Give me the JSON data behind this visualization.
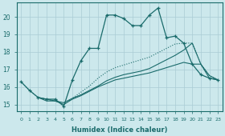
{
  "xlabel": "Humidex (Indice chaleur)",
  "background_color": "#cce8ec",
  "grid_color": "#aaccd4",
  "line_color": "#1a6b6b",
  "xlim": [
    -0.5,
    23.5
  ],
  "ylim": [
    14.6,
    20.8
  ],
  "xticks": [
    0,
    1,
    2,
    3,
    4,
    5,
    6,
    7,
    8,
    9,
    10,
    11,
    12,
    13,
    14,
    15,
    16,
    17,
    18,
    19,
    20,
    21,
    22,
    23
  ],
  "yticks": [
    15,
    16,
    17,
    18,
    19,
    20
  ],
  "line_main": {
    "x": [
      0,
      1,
      2,
      3,
      4,
      5,
      6,
      7,
      8,
      9,
      10,
      11,
      12,
      13,
      14,
      15,
      16,
      17,
      18,
      19,
      20,
      21,
      22,
      23
    ],
    "y": [
      16.3,
      15.8,
      15.4,
      15.3,
      15.3,
      14.9,
      16.4,
      17.5,
      18.2,
      18.2,
      20.1,
      20.1,
      19.9,
      19.5,
      19.5,
      20.1,
      20.5,
      18.8,
      18.9,
      18.5,
      17.3,
      16.7,
      16.5,
      16.4
    ]
  },
  "line_flat1": {
    "x": [
      2,
      3,
      4,
      5,
      6,
      7,
      8,
      9,
      10,
      11,
      12,
      13,
      14,
      15,
      16,
      17,
      18,
      19,
      20,
      21,
      22,
      23
    ],
    "y": [
      15.4,
      15.3,
      15.2,
      15.0,
      15.3,
      15.5,
      15.75,
      16.0,
      16.2,
      16.4,
      16.5,
      16.6,
      16.7,
      16.8,
      16.95,
      17.1,
      17.25,
      17.4,
      17.3,
      17.3,
      16.5,
      16.4
    ]
  },
  "line_flat2": {
    "x": [
      2,
      3,
      4,
      5,
      6,
      7,
      8,
      9,
      10,
      11,
      12,
      13,
      14,
      15,
      16,
      17,
      18,
      19,
      20,
      21,
      22,
      23
    ],
    "y": [
      15.4,
      15.2,
      15.2,
      15.1,
      15.35,
      15.55,
      15.8,
      16.05,
      16.35,
      16.55,
      16.7,
      16.8,
      16.9,
      17.05,
      17.3,
      17.55,
      17.8,
      18.1,
      18.5,
      17.3,
      16.65,
      16.4
    ]
  },
  "line_dotted": {
    "x": [
      0,
      1,
      2,
      3,
      4,
      5,
      6,
      7,
      8,
      9,
      10,
      11,
      12,
      13,
      14,
      15,
      16,
      17,
      18,
      19,
      20,
      21,
      22,
      23
    ],
    "y": [
      16.3,
      15.8,
      15.4,
      15.3,
      15.2,
      15.0,
      15.35,
      15.7,
      16.05,
      16.5,
      16.85,
      17.1,
      17.25,
      17.4,
      17.55,
      17.7,
      17.95,
      18.2,
      18.45,
      18.5,
      18.5,
      17.3,
      16.65,
      16.4
    ]
  }
}
